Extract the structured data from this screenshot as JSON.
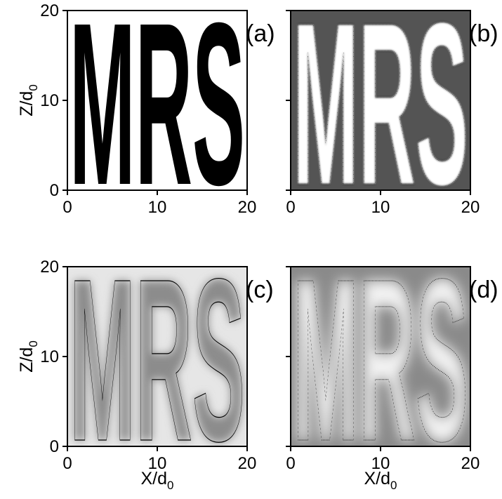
{
  "figure": {
    "panel_labels": [
      "(a)",
      "(b)",
      "(c)",
      "(d)"
    ],
    "x_axis_label": "X/d",
    "x_axis_sub": "0",
    "y_axis_label": "Z/d",
    "y_axis_sub": "0",
    "image_text": "MRS"
  },
  "colors": {
    "panel_a_bg": "#ffffff",
    "panel_a_ink": "#000000",
    "panel_b_bg": "#545454",
    "panel_b_ink": "#ffffff",
    "panel_c_bg": "#e6e6e6",
    "panel_c_ink": "#8c8c8c",
    "panel_d_bg": "#8a8a8a",
    "panel_d_ink": "#f2f2f2"
  },
  "chart_data": [
    {
      "type": "heatmap",
      "panel": "(a)",
      "xlabel": "",
      "ylabel": "Z/d0",
      "xlim": [
        0,
        20
      ],
      "ylim": [
        0,
        20
      ],
      "x_ticks": [
        0,
        10,
        20
      ],
      "y_ticks": [
        0,
        10,
        20
      ],
      "pattern": "MRS",
      "style": "solid black letters on white"
    },
    {
      "type": "heatmap",
      "panel": "(b)",
      "xlabel": "",
      "ylabel": "",
      "xlim": [
        0,
        20
      ],
      "ylim": [
        0,
        20
      ],
      "x_ticks": [
        0,
        10,
        20
      ],
      "y_ticks": [
        0,
        10,
        20
      ],
      "pattern": "MRS",
      "style": "contour map, white letters on dark gray"
    },
    {
      "type": "heatmap",
      "panel": "(c)",
      "xlabel": "X/d0",
      "ylabel": "Z/d0",
      "xlim": [
        0,
        20
      ],
      "ylim": [
        0,
        20
      ],
      "x_ticks": [
        0,
        10,
        20
      ],
      "y_ticks": [
        0,
        10,
        20
      ],
      "pattern": "MRS",
      "style": "smoothed contour map, gray levels on light gray"
    },
    {
      "type": "heatmap",
      "panel": "(d)",
      "xlabel": "X/d0",
      "ylabel": "",
      "xlim": [
        0,
        20
      ],
      "ylim": [
        0,
        20
      ],
      "x_ticks": [
        0,
        10,
        20
      ],
      "y_ticks": [
        0,
        10,
        20
      ],
      "pattern": "MRS",
      "style": "strongly smoothed contour map, mixed gray levels"
    }
  ]
}
